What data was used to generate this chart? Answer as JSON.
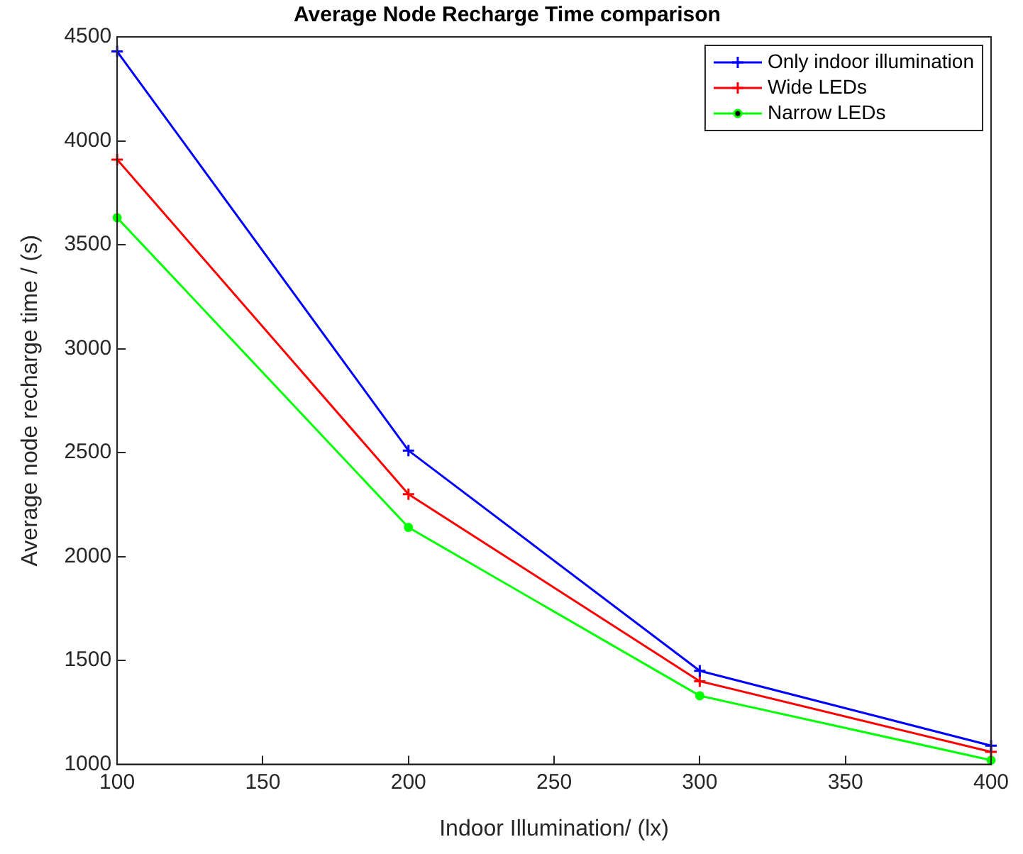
{
  "chart_data": {
    "type": "line",
    "title": "Average Node Recharge Time comparison",
    "xlabel": "Indoor Illumination/ (lx)",
    "ylabel": "Average node recharge time / (s)",
    "x": [
      100,
      200,
      300,
      400
    ],
    "series": [
      {
        "name": "Only indoor illumination",
        "color": "#0000ff",
        "marker": "cross",
        "values": [
          4430,
          2510,
          1450,
          1090
        ]
      },
      {
        "name": "Wide LEDs",
        "color": "#ff0000",
        "marker": "cross",
        "values": [
          3910,
          2300,
          1400,
          1060
        ]
      },
      {
        "name": "Narrow LEDs",
        "color": "#00ff00",
        "marker": "circle",
        "values": [
          3630,
          2140,
          1330,
          1020
        ]
      }
    ],
    "xlim": [
      100,
      400
    ],
    "xticks": [
      100,
      150,
      200,
      250,
      300,
      350,
      400
    ],
    "ylim": [
      1000,
      4500
    ],
    "yticks": [
      1000,
      1500,
      2000,
      2500,
      3000,
      3500,
      4000,
      4500
    ],
    "grid": false,
    "legend": "top right"
  }
}
